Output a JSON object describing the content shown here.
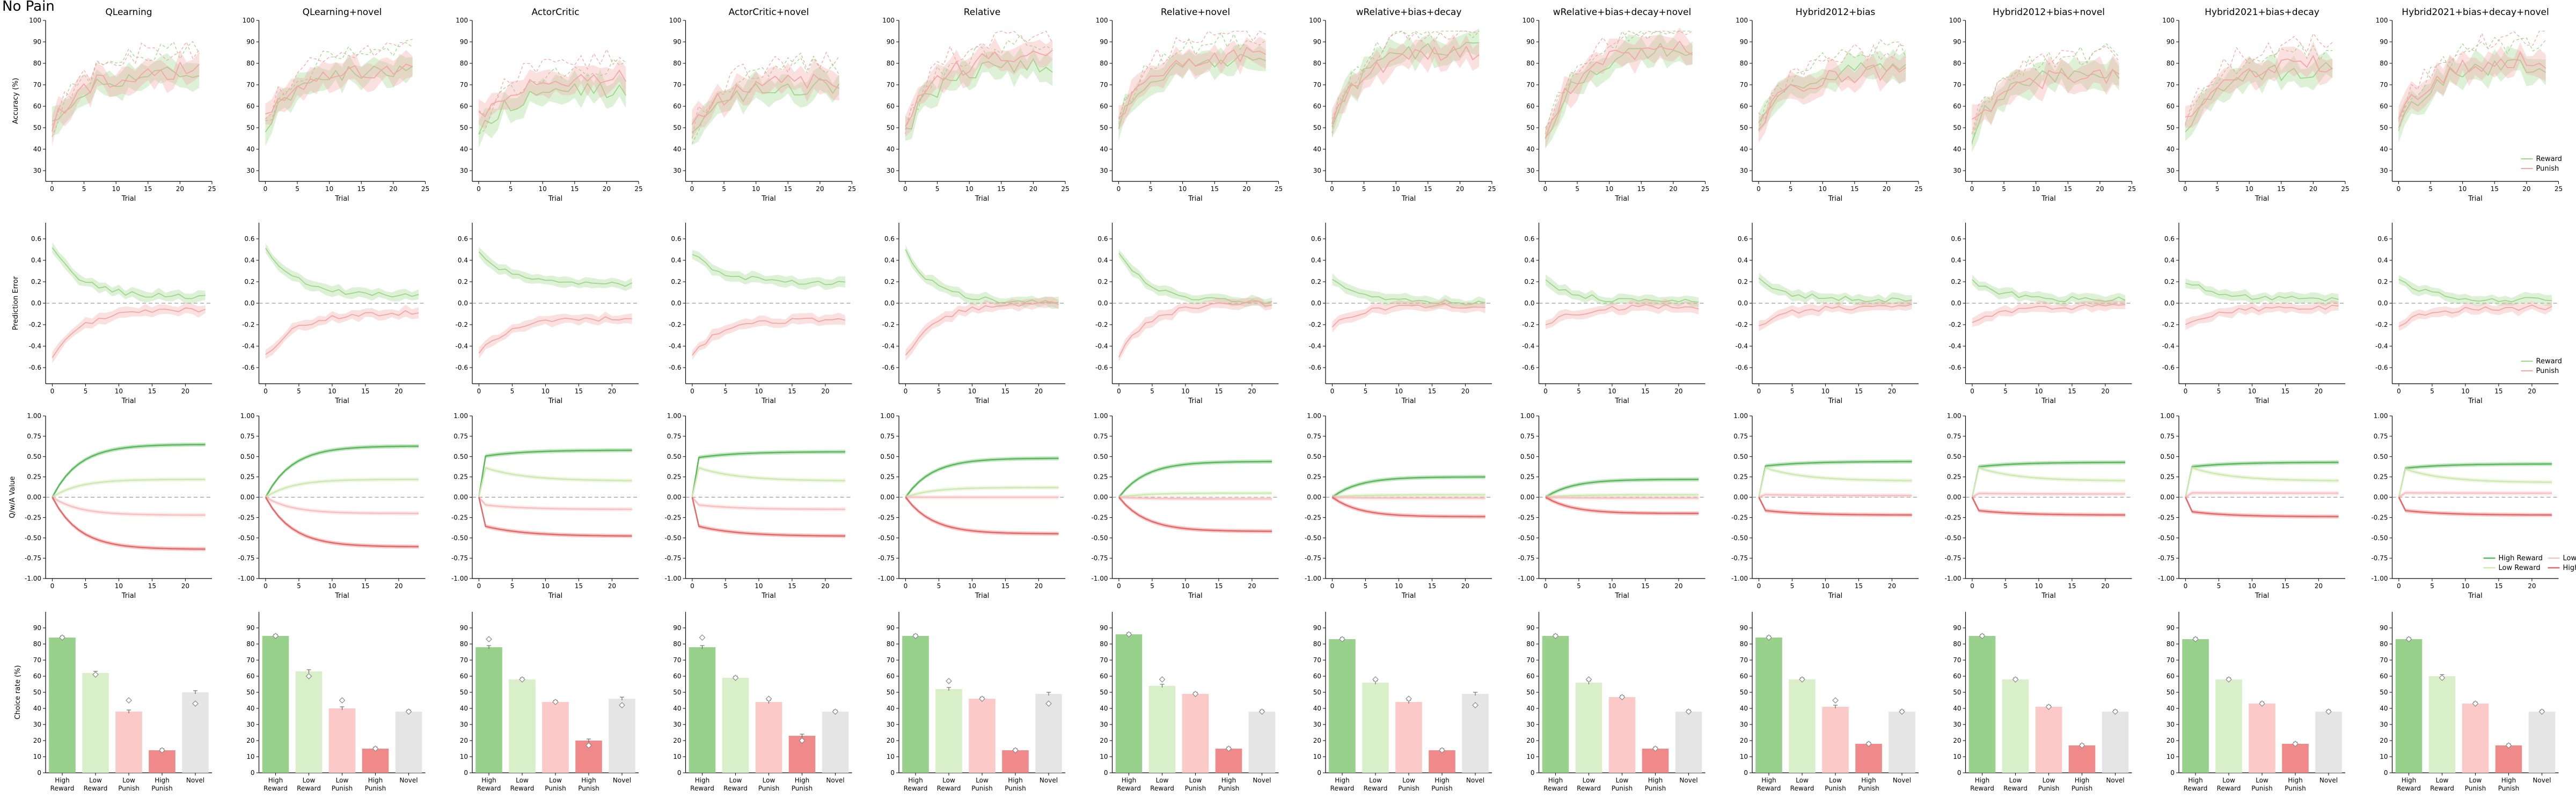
{
  "figure_title": "No Pain",
  "models": [
    "QLearning",
    "QLearning+novel",
    "ActorCritic",
    "ActorCritic+novel",
    "Relative",
    "Relative+novel",
    "wRelative+bias+decay",
    "wRelative+bias+decay+novel",
    "Hybrid2012+bias",
    "Hybrid2012+bias+novel",
    "Hybrid2021+bias+decay",
    "Hybrid2021+bias+decay+novel"
  ],
  "row_ylabels": [
    "Accuracy (%)",
    "Prediction Error",
    "Q/w/A Value",
    "Choice rate (%)"
  ],
  "xlabel": "Trial",
  "legends": {
    "acc": [
      "Reward",
      "Punish"
    ],
    "pe": [
      "Reward",
      "Punish"
    ],
    "q": [
      "High Reward",
      "Low Reward",
      "Low Punish",
      "High Punish"
    ]
  },
  "colors": {
    "reward": "#9ed68a",
    "punish": "#f3a6a6",
    "high_reward": "#5cb85c",
    "low_reward": "#cfe9b3",
    "low_punish": "#f6c1c1",
    "high_punish": "#e36a6a",
    "bar_high_reward": "#98d18b",
    "bar_low_reward": "#d9efc9",
    "bar_low_punish": "#fcc9c9",
    "bar_high_punish": "#f08a8a",
    "bar_novel": "#e5e5e5"
  },
  "chart_data": [
    {
      "type": "line",
      "row": "accuracy",
      "title_per_panel": "models",
      "x": [
        0,
        1,
        2,
        3,
        4,
        5,
        6,
        7,
        8,
        9,
        10,
        11,
        12,
        13,
        14,
        15,
        16,
        17,
        18,
        19,
        20,
        21,
        22,
        23,
        24
      ],
      "xlim": [
        -1,
        25
      ],
      "xticks": [
        0,
        5,
        10,
        15,
        20,
        25
      ],
      "ylim": [
        25,
        100
      ],
      "yticks": [
        30,
        40,
        50,
        60,
        70,
        80,
        90,
        100
      ],
      "ylabel": "Accuracy (%)",
      "xlabel": "Trial",
      "panels": [
        {
          "reward": {
            "start": 50,
            "end": 76
          },
          "punish": {
            "start": 52,
            "end": 77
          }
        },
        {
          "reward": {
            "start": 51,
            "end": 77
          },
          "punish": {
            "start": 53,
            "end": 78
          }
        },
        {
          "reward": {
            "start": 48,
            "end": 68
          },
          "punish": {
            "start": 55,
            "end": 73
          }
        },
        {
          "reward": {
            "start": 47,
            "end": 70
          },
          "punish": {
            "start": 50,
            "end": 72
          }
        },
        {
          "reward": {
            "start": 47,
            "end": 80
          },
          "punish": {
            "start": 50,
            "end": 84
          }
        },
        {
          "reward": {
            "start": 53,
            "end": 82
          },
          "punish": {
            "start": 55,
            "end": 84
          }
        },
        {
          "reward": {
            "start": 52,
            "end": 87
          },
          "punish": {
            "start": 53,
            "end": 86
          }
        },
        {
          "reward": {
            "start": 45,
            "end": 87
          },
          "punish": {
            "start": 47,
            "end": 88
          }
        },
        {
          "reward": {
            "start": 50,
            "end": 78
          },
          "punish": {
            "start": 52,
            "end": 76
          }
        },
        {
          "reward": {
            "start": 47,
            "end": 76
          },
          "punish": {
            "start": 50,
            "end": 75
          }
        },
        {
          "reward": {
            "start": 50,
            "end": 77
          },
          "punish": {
            "start": 52,
            "end": 80
          }
        },
        {
          "reward": {
            "start": 50,
            "end": 80
          },
          "punish": {
            "start": 52,
            "end": 82
          }
        }
      ],
      "legend": {
        "labels": [
          "Reward",
          "Punish"
        ],
        "location": "lower right",
        "panel": 11
      }
    },
    {
      "type": "line",
      "row": "prediction_error",
      "x": [
        0,
        1,
        2,
        3,
        4,
        5,
        6,
        7,
        8,
        9,
        10,
        11,
        12,
        13,
        14,
        15,
        16,
        17,
        18,
        19,
        20,
        21,
        22,
        23
      ],
      "xlim": [
        -1,
        24
      ],
      "xticks": [
        0,
        5,
        10,
        15,
        20
      ],
      "ylim": [
        -0.75,
        0.75
      ],
      "yticks": [
        -0.6,
        -0.4,
        -0.2,
        0.0,
        0.2,
        0.4,
        0.6
      ],
      "ylabel": "Prediction Error",
      "xlabel": "Trial",
      "panels": [
        {
          "reward": {
            "start": 0.5,
            "end": 0.06
          },
          "punish": {
            "start": -0.5,
            "end": -0.06
          }
        },
        {
          "reward": {
            "start": 0.52,
            "end": 0.07
          },
          "punish": {
            "start": -0.5,
            "end": -0.09
          }
        },
        {
          "reward": {
            "start": 0.46,
            "end": 0.18
          },
          "punish": {
            "start": -0.47,
            "end": -0.14
          }
        },
        {
          "reward": {
            "start": 0.46,
            "end": 0.19
          },
          "punish": {
            "start": -0.47,
            "end": -0.15
          }
        },
        {
          "reward": {
            "start": 0.48,
            "end": 0.0
          },
          "punish": {
            "start": -0.5,
            "end": 0.0
          }
        },
        {
          "reward": {
            "start": 0.47,
            "end": 0.01
          },
          "punish": {
            "start": -0.5,
            "end": 0.0
          }
        },
        {
          "reward": {
            "start": 0.2,
            "end": 0.0
          },
          "punish": {
            "start": -0.2,
            "end": -0.02
          }
        },
        {
          "reward": {
            "start": 0.22,
            "end": 0.01
          },
          "punish": {
            "start": -0.21,
            "end": -0.03
          }
        },
        {
          "reward": {
            "start": 0.21,
            "end": 0.03
          },
          "punish": {
            "start": -0.2,
            "end": -0.03
          }
        },
        {
          "reward": {
            "start": 0.22,
            "end": 0.03
          },
          "punish": {
            "start": -0.2,
            "end": -0.03
          }
        },
        {
          "reward": {
            "start": 0.21,
            "end": 0.04
          },
          "punish": {
            "start": -0.2,
            "end": -0.04
          }
        },
        {
          "reward": {
            "start": 0.22,
            "end": 0.03
          },
          "punish": {
            "start": -0.2,
            "end": -0.04
          }
        }
      ],
      "legend": {
        "labels": [
          "Reward",
          "Punish"
        ],
        "location": "lower right",
        "panel": 11
      }
    },
    {
      "type": "line",
      "row": "value",
      "x": [
        0,
        1,
        2,
        3,
        4,
        5,
        6,
        7,
        8,
        9,
        10,
        11,
        12,
        13,
        14,
        15,
        16,
        17,
        18,
        19,
        20,
        21,
        22,
        23
      ],
      "xlim": [
        -1,
        24
      ],
      "xticks": [
        0,
        5,
        10,
        15,
        20
      ],
      "ylim": [
        -1.0,
        1.0
      ],
      "yticks": [
        -1.0,
        -0.75,
        -0.5,
        -0.25,
        0.0,
        0.25,
        0.5,
        0.75,
        1.0
      ],
      "ylabel": "Q/w/A Value",
      "xlabel": "Trial",
      "series_names": [
        "High Reward",
        "Low Reward",
        "Low Punish",
        "High Punish"
      ],
      "panels": [
        {
          "HR": 0.65,
          "LR": 0.22,
          "LP": -0.22,
          "HP": -0.64
        },
        {
          "HR": 0.63,
          "LR": 0.22,
          "LP": -0.2,
          "HP": -0.61
        },
        {
          "HR": 0.58,
          "LR": 0.2,
          "LP": -0.15,
          "HP": -0.48,
          "jump": true
        },
        {
          "HR": 0.56,
          "LR": 0.2,
          "LP": -0.15,
          "HP": -0.48,
          "jump": true
        },
        {
          "HR": 0.48,
          "LR": 0.12,
          "LP": 0.0,
          "HP": -0.45
        },
        {
          "HR": 0.44,
          "LR": 0.05,
          "LP": -0.02,
          "HP": -0.42
        },
        {
          "HR": 0.25,
          "LR": 0.03,
          "LP": -0.01,
          "HP": -0.24
        },
        {
          "HR": 0.22,
          "LR": 0.03,
          "LP": -0.01,
          "HP": -0.2
        },
        {
          "HR": 0.44,
          "LR": 0.2,
          "LP": 0.02,
          "HP": -0.22,
          "jump": true
        },
        {
          "HR": 0.43,
          "LR": 0.2,
          "LP": 0.04,
          "HP": -0.22,
          "jump": true
        },
        {
          "HR": 0.43,
          "LR": 0.2,
          "LP": 0.05,
          "HP": -0.24,
          "jump": true
        },
        {
          "HR": 0.41,
          "LR": 0.18,
          "LP": 0.05,
          "HP": -0.22,
          "jump": true
        }
      ],
      "legend": {
        "labels": [
          "High Reward",
          "Low Reward",
          "Low Punish",
          "High Punish"
        ],
        "location": "lower right",
        "panel": 11
      }
    },
    {
      "type": "bar",
      "row": "choice_rate",
      "categories": [
        "High\nReward",
        "Low\nReward",
        "Low\nPunish",
        "High\nPunish",
        "Novel"
      ],
      "ylim": [
        0,
        100
      ],
      "yticks": [
        0,
        10,
        20,
        30,
        40,
        50,
        60,
        70,
        80,
        90
      ],
      "ylabel": "Choice rate (%)",
      "panels": [
        {
          "values": [
            84,
            62,
            38,
            14,
            50
          ],
          "markers": [
            84,
            61,
            45,
            14,
            43
          ]
        },
        {
          "values": [
            85,
            63,
            40,
            15,
            38
          ],
          "markers": [
            85,
            60,
            45,
            15,
            38
          ]
        },
        {
          "values": [
            78,
            58,
            44,
            20,
            46
          ],
          "markers": [
            83,
            58,
            44,
            17,
            42
          ]
        },
        {
          "values": [
            78,
            59,
            44,
            23,
            38
          ],
          "markers": [
            84,
            59,
            46,
            20,
            38
          ]
        },
        {
          "values": [
            85,
            52,
            46,
            14,
            49
          ],
          "markers": [
            85,
            57,
            46,
            14,
            43
          ]
        },
        {
          "values": [
            86,
            54,
            49,
            15,
            38
          ],
          "markers": [
            86,
            58,
            49,
            15,
            38
          ]
        },
        {
          "values": [
            83,
            56,
            44,
            14,
            49
          ],
          "markers": [
            83,
            58,
            46,
            14,
            42
          ]
        },
        {
          "values": [
            85,
            56,
            47,
            15,
            38
          ],
          "markers": [
            85,
            58,
            47,
            15,
            38
          ]
        },
        {
          "values": [
            84,
            58,
            41,
            18,
            38
          ],
          "markers": [
            84,
            58,
            45,
            18,
            38
          ]
        },
        {
          "values": [
            85,
            58,
            41,
            17,
            38
          ],
          "markers": [
            85,
            58,
            41,
            17,
            38
          ]
        },
        {
          "values": [
            83,
            58,
            43,
            18,
            38
          ],
          "markers": [
            83,
            58,
            43,
            18,
            38
          ]
        },
        {
          "values": [
            83,
            60,
            43,
            17,
            38
          ],
          "markers": [
            83,
            59,
            43,
            17,
            38
          ]
        }
      ]
    }
  ]
}
